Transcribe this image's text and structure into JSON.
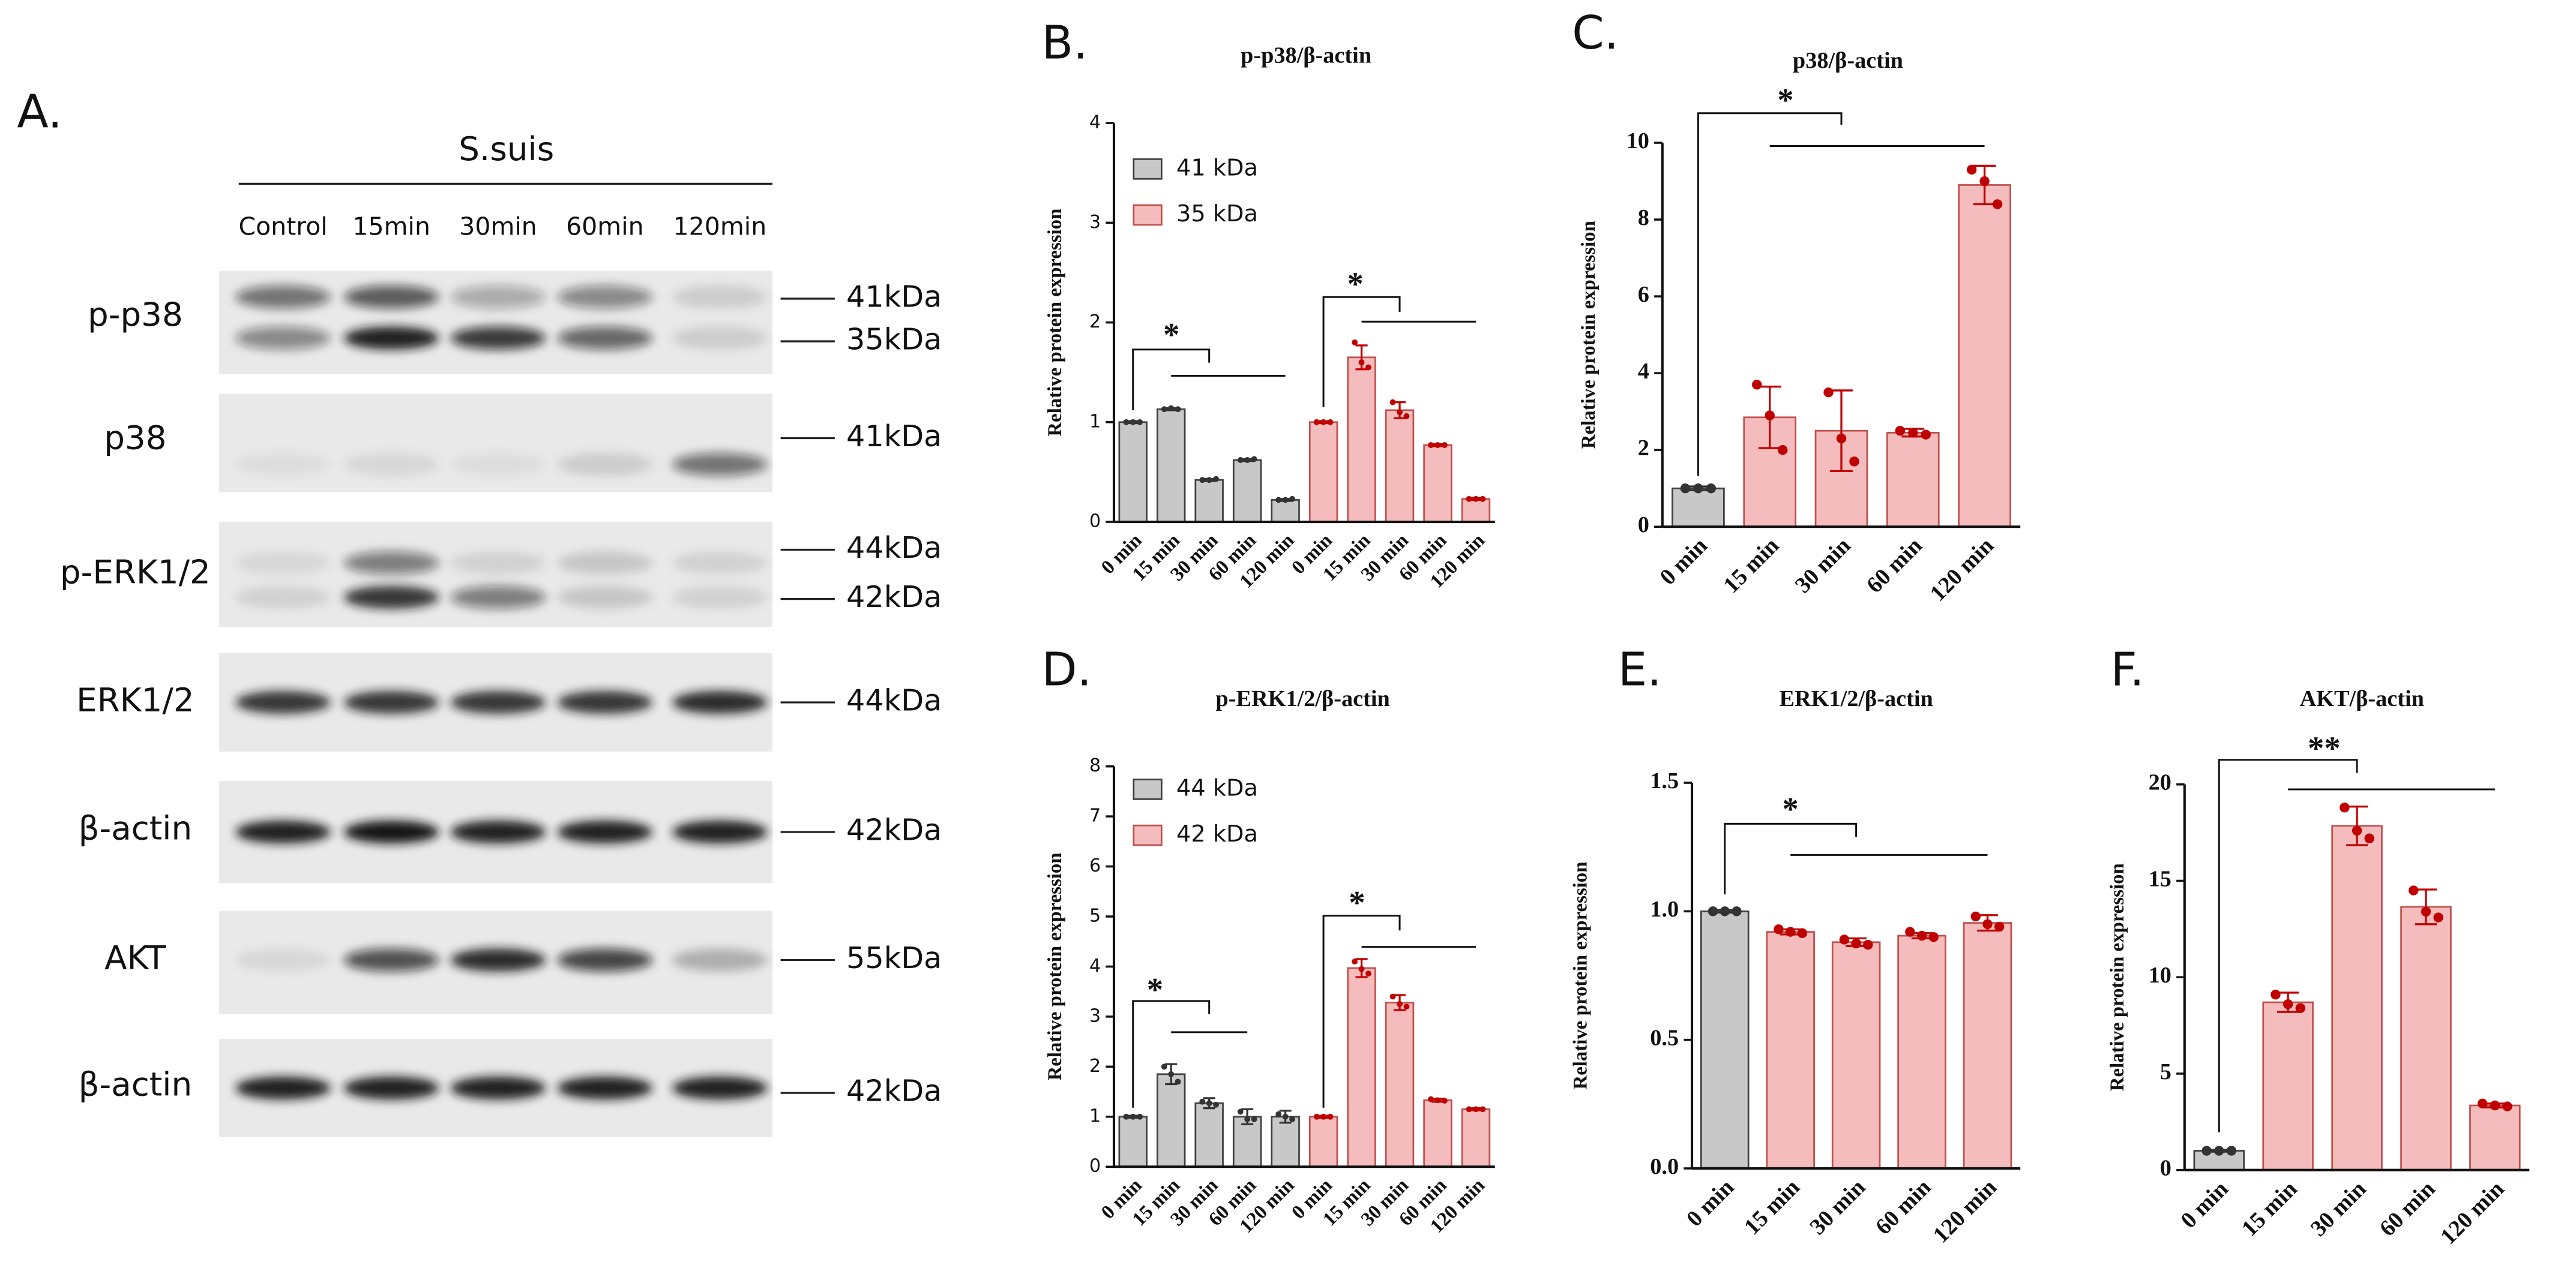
{
  "western_blot": {
    "panel_label": "A.",
    "group_label": "S.suis",
    "lanes": [
      "Control",
      "15min",
      "30min",
      "60min",
      "120min"
    ],
    "rows": [
      {
        "label": "p-p38",
        "markers": [
          "41kDa",
          "35kDa"
        ]
      },
      {
        "label": "p38",
        "markers": [
          "41kDa"
        ]
      },
      {
        "label": "p-ERK1/2",
        "markers": [
          "44kDa",
          "42kDa"
        ]
      },
      {
        "label": "ERK1/2",
        "markers": [
          "44kDa"
        ]
      },
      {
        "label": "β-actin",
        "markers": [
          "42kDa"
        ]
      },
      {
        "label": "AKT",
        "markers": [
          "55kDa"
        ]
      },
      {
        "label": "β-actin",
        "markers": [
          "42kDa"
        ]
      }
    ]
  },
  "chart_data": [
    {
      "type": "bar",
      "panel_label": "B.",
      "title": "p-p38/β-actin",
      "ylabel": "Relative protein expression",
      "categories": [
        "0 min",
        "15 min",
        "30 min",
        "60 min",
        "120 min"
      ],
      "series": [
        {
          "name": "41 kDa",
          "color": "#c8c8c8",
          "edge_color": "#404040",
          "point_color": "#333333",
          "values": [
            1.0,
            1.13,
            0.42,
            0.62,
            0.22
          ],
          "errors": [
            0.01,
            0.01,
            0.01,
            0.01,
            0.01
          ],
          "points": [
            [
              1,
              1,
              1
            ],
            [
              1.13,
              1.14,
              1.13
            ],
            [
              0.42,
              0.42,
              0.43
            ],
            [
              0.62,
              0.62,
              0.63
            ],
            [
              0.22,
              0.22,
              0.23
            ]
          ]
        },
        {
          "name": "35 kDa",
          "color": "#f4bcbc",
          "edge_color": "#c0504d",
          "point_color": "#c00000",
          "values": [
            1.0,
            1.65,
            1.12,
            0.77,
            0.23
          ],
          "errors": [
            0.01,
            0.12,
            0.08,
            0.01,
            0.01
          ],
          "points": [
            [
              1,
              1,
              1
            ],
            [
              1.8,
              1.6,
              1.55
            ],
            [
              1.2,
              1.1,
              1.06
            ],
            [
              0.77,
              0.77,
              0.77
            ],
            [
              0.23,
              0.23,
              0.23
            ]
          ]
        }
      ],
      "ylim": [
        0,
        4
      ],
      "yticks": [
        0,
        1,
        2,
        3,
        4
      ],
      "legend": "upper left",
      "annotations": [
        "*",
        "*"
      ]
    },
    {
      "type": "bar",
      "panel_label": "C.",
      "title": "p38/β-actin",
      "ylabel": "Relative protein expression",
      "categories": [
        "0 min",
        "15 min",
        "30 min",
        "60 min",
        "120 min"
      ],
      "values": [
        1.0,
        2.85,
        2.5,
        2.45,
        8.9
      ],
      "errors": [
        0.05,
        0.8,
        1.05,
        0.1,
        0.5
      ],
      "points": [
        [
          1,
          1,
          1
        ],
        [
          3.7,
          2.9,
          2.0
        ],
        [
          3.5,
          2.3,
          1.7
        ],
        [
          2.5,
          2.45,
          2.4
        ],
        [
          9.3,
          9.0,
          8.4
        ]
      ],
      "colors": [
        "#c8c8c8",
        "#f4bcbc",
        "#f4bcbc",
        "#f4bcbc",
        "#f4bcbc"
      ],
      "edge_colors": [
        "#404040",
        "#c0504d",
        "#c0504d",
        "#c0504d",
        "#c0504d"
      ],
      "point_colors": [
        "#333333",
        "#c00000",
        "#c00000",
        "#c00000",
        "#c00000"
      ],
      "ylim": [
        0,
        10
      ],
      "yticks": [
        0,
        2,
        4,
        6,
        8,
        10
      ],
      "annotations": [
        "*"
      ]
    },
    {
      "type": "bar",
      "panel_label": "D.",
      "title": "p-ERK1/2/β-actin",
      "ylabel": "Relative protein expression",
      "categories": [
        "0 min",
        "15 min",
        "30 min",
        "60 min",
        "120 min"
      ],
      "series": [
        {
          "name": "44 kDa",
          "color": "#c8c8c8",
          "edge_color": "#404040",
          "point_color": "#333333",
          "values": [
            1.0,
            1.85,
            1.27,
            1.0,
            1.0
          ],
          "errors": [
            0.02,
            0.2,
            0.1,
            0.15,
            0.12
          ],
          "points": [
            [
              1,
              1,
              1
            ],
            [
              2.0,
              1.85,
              1.7
            ],
            [
              1.3,
              1.27,
              1.24
            ],
            [
              1.1,
              0.95,
              0.95
            ],
            [
              1.05,
              1.0,
              0.95
            ]
          ]
        },
        {
          "name": "42 kDa",
          "color": "#f4bcbc",
          "edge_color": "#c0504d",
          "point_color": "#c00000",
          "values": [
            1.0,
            3.97,
            3.28,
            1.33,
            1.15
          ],
          "errors": [
            0.02,
            0.18,
            0.15,
            0.03,
            0.02
          ],
          "points": [
            [
              1,
              1,
              1
            ],
            [
              4.1,
              3.95,
              3.86
            ],
            [
              3.4,
              3.25,
              3.2
            ],
            [
              1.35,
              1.33,
              1.32
            ],
            [
              1.15,
              1.15,
              1.15
            ]
          ]
        }
      ],
      "ylim": [
        0,
        8
      ],
      "yticks": [
        0,
        1,
        2,
        3,
        4,
        5,
        6,
        7,
        8
      ],
      "legend": "upper left",
      "annotations": [
        "*",
        "*"
      ]
    },
    {
      "type": "bar",
      "panel_label": "E.",
      "title": "ERK1/2/β-actin",
      "ylabel": "Relative protein expression",
      "categories": [
        "0 min",
        "15 min",
        "30 min",
        "60 min",
        "120 min"
      ],
      "values": [
        1.0,
        0.92,
        0.88,
        0.905,
        0.955
      ],
      "errors": [
        0.005,
        0.01,
        0.015,
        0.01,
        0.03
      ],
      "points": [
        [
          1,
          1,
          1
        ],
        [
          0.93,
          0.92,
          0.915
        ],
        [
          0.89,
          0.875,
          0.87
        ],
        [
          0.92,
          0.905,
          0.9
        ],
        [
          0.98,
          0.95,
          0.94
        ]
      ],
      "colors": [
        "#c8c8c8",
        "#f4bcbc",
        "#f4bcbc",
        "#f4bcbc",
        "#f4bcbc"
      ],
      "edge_colors": [
        "#404040",
        "#c0504d",
        "#c0504d",
        "#c0504d",
        "#c0504d"
      ],
      "point_colors": [
        "#333333",
        "#c00000",
        "#c00000",
        "#c00000",
        "#c00000"
      ],
      "ylim": [
        0,
        1.5
      ],
      "yticks": [
        {
          "value": 0,
          "label": "0.0"
        },
        0.5,
        {
          "value": 1,
          "label": "1.0"
        },
        1.5
      ],
      "annotations": [
        "*"
      ]
    },
    {
      "type": "bar",
      "panel_label": "F.",
      "title": "AKT/β-actin",
      "ylabel": "Relative protein expression",
      "categories": [
        "0 min",
        "15 min",
        "30 min",
        "60 min",
        "120 min"
      ],
      "values": [
        1.0,
        8.7,
        17.85,
        13.65,
        3.35
      ],
      "errors": [
        0.05,
        0.5,
        1.0,
        0.9,
        0.1
      ],
      "points": [
        [
          1,
          1,
          1
        ],
        [
          9.1,
          8.6,
          8.4
        ],
        [
          18.8,
          17.6,
          17.2
        ],
        [
          14.5,
          13.4,
          13.1
        ],
        [
          3.45,
          3.35,
          3.3
        ]
      ],
      "colors": [
        "#c8c8c8",
        "#f4bcbc",
        "#f4bcbc",
        "#f4bcbc",
        "#f4bcbc"
      ],
      "edge_colors": [
        "#404040",
        "#c0504d",
        "#c0504d",
        "#c0504d",
        "#c0504d"
      ],
      "point_colors": [
        "#333333",
        "#c00000",
        "#c00000",
        "#c00000",
        "#c00000"
      ],
      "ylim": [
        0,
        20
      ],
      "yticks": [
        0,
        5,
        10,
        15,
        20
      ],
      "annotations": [
        "**"
      ]
    }
  ]
}
